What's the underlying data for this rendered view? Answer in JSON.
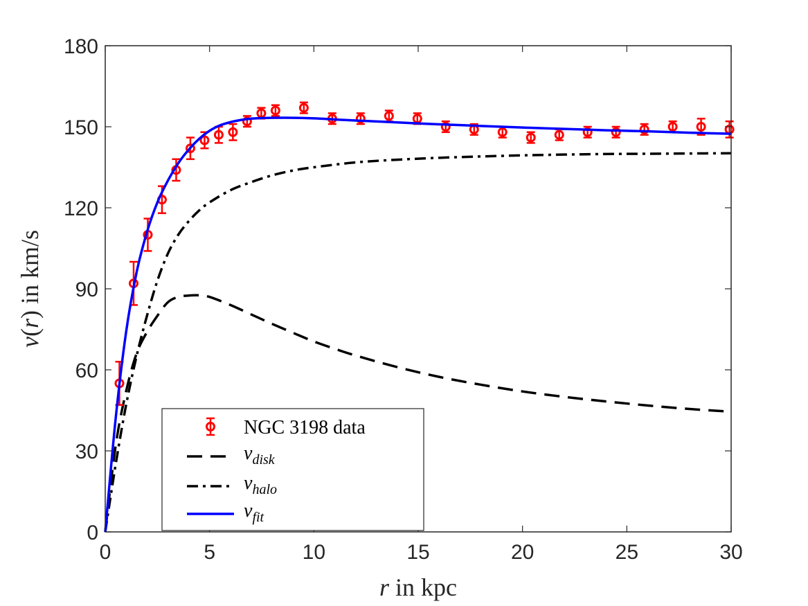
{
  "chart_data": {
    "type": "line",
    "title": "",
    "xlabel": {
      "var": "r",
      "text": " in kpc"
    },
    "ylabel": {
      "var": "v",
      "paren": "(",
      "var2": "r",
      "paren2": ")",
      "text": " in km/s"
    },
    "xlim": [
      0,
      30
    ],
    "ylim": [
      0,
      180
    ],
    "xticks": [
      0,
      5,
      10,
      15,
      20,
      25,
      30
    ],
    "yticks": [
      0,
      30,
      60,
      90,
      120,
      150,
      180
    ],
    "xtick_labels": [
      "0",
      "5",
      "10",
      "15",
      "20",
      "25",
      "30"
    ],
    "ytick_labels": [
      "0",
      "30",
      "60",
      "90",
      "120",
      "150",
      "180"
    ],
    "grid": false,
    "legend_position": "bottom-left",
    "colors": {
      "data": "#ff0000",
      "disk": "#000000",
      "halo": "#000000",
      "fit": "#0000ff",
      "axes": "#262626"
    },
    "series": [
      {
        "name": "NGC 3198 data",
        "kind": "errorbar",
        "x": [
          0.68,
          1.36,
          2.04,
          2.72,
          3.4,
          4.08,
          4.76,
          5.44,
          6.12,
          6.8,
          7.48,
          8.16,
          9.52,
          10.88,
          12.24,
          13.6,
          14.96,
          16.32,
          17.68,
          19.04,
          20.4,
          21.76,
          23.12,
          24.48,
          25.84,
          27.2,
          28.56,
          29.92
        ],
        "y": [
          55,
          92,
          110,
          123,
          134,
          142,
          145,
          147,
          148,
          152,
          155,
          156,
          157,
          153,
          153,
          154,
          153,
          150,
          149,
          148,
          146,
          147,
          148,
          148,
          149,
          150,
          150,
          149
        ],
        "err": [
          8,
          8,
          6,
          5,
          4,
          4,
          3,
          3,
          3,
          2,
          2,
          2,
          2,
          2,
          2,
          2,
          2,
          2,
          2,
          2,
          2,
          2,
          2,
          2,
          2,
          2,
          3,
          3
        ]
      },
      {
        "name": "v_disk",
        "label_var": "v",
        "label_sub": "disk",
        "kind": "dashed",
        "x": [
          0,
          0.5,
          1,
          1.5,
          2,
          2.5,
          3,
          3.5,
          4,
          4.5,
          5,
          6,
          7,
          8,
          9,
          10,
          11,
          12,
          14,
          16,
          18,
          20,
          22,
          24,
          26,
          28,
          30
        ],
        "y": [
          0,
          32,
          52,
          66,
          74,
          80,
          85,
          87,
          87.5,
          87.6,
          87,
          84,
          80.5,
          77,
          73.7,
          70.5,
          67.8,
          65.3,
          61,
          57.4,
          54.5,
          52,
          50,
          48.3,
          46.8,
          45.5,
          44.5
        ]
      },
      {
        "name": "v_halo",
        "label_var": "v",
        "label_sub": "halo",
        "kind": "dashdot",
        "x": [
          0,
          0.5,
          1,
          1.5,
          2,
          2.5,
          3,
          3.5,
          4,
          4.5,
          5,
          6,
          7,
          8,
          9,
          10,
          12,
          14,
          16,
          18,
          20,
          22,
          24,
          26,
          28,
          30
        ],
        "y": [
          0,
          25,
          47,
          65,
          80,
          93,
          103,
          110,
          115,
          119,
          122,
          126.5,
          129.5,
          132,
          133.8,
          135,
          136.8,
          137.8,
          138.5,
          139,
          139.4,
          139.7,
          139.9,
          140,
          140.1,
          140.2
        ]
      },
      {
        "name": "v_fit",
        "label_var": "v",
        "label_sub": "fit",
        "kind": "solid",
        "x": [
          0,
          0.5,
          1,
          1.5,
          2,
          2.5,
          3,
          3.5,
          4,
          4.5,
          5,
          5.5,
          6,
          6.5,
          7,
          7.5,
          8,
          9,
          10,
          11,
          12,
          14,
          16,
          18,
          20,
          22,
          24,
          26,
          28,
          30
        ],
        "y": [
          0,
          42,
          74,
          96,
          111,
          122,
          130,
          136.5,
          141.5,
          145.5,
          148.5,
          150.5,
          151.7,
          152.5,
          153,
          153.2,
          153.3,
          153.3,
          153.1,
          152.7,
          152.3,
          151.6,
          150.9,
          150.3,
          149.7,
          149.2,
          148.7,
          148.3,
          147.8,
          147.4
        ]
      }
    ]
  }
}
